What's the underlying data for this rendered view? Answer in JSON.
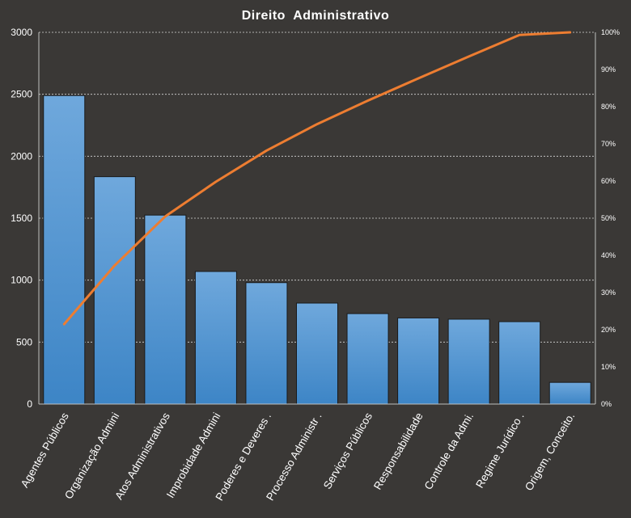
{
  "chart_data": {
    "type": "bar",
    "title": "Direito  Administrativo",
    "categories": [
      "Agentes Públicos",
      "Organização Admini",
      "Atos Administrativos",
      "Improbidade Admini",
      "Poderes e Deveres .",
      "Processo Administr .",
      "Serviços Públicos",
      "Responsabilidade",
      "Controle da Admi.",
      "Regime Jurídico .",
      "Origem, Conceito."
    ],
    "series": [
      {
        "type": "bar",
        "values": [
          2490,
          1835,
          1525,
          1070,
          980,
          815,
          730,
          695,
          685,
          665,
          175
        ]
      },
      {
        "type": "line",
        "axis": "right",
        "values": [
          21.5,
          37.3,
          50.5,
          59.8,
          68.2,
          75.3,
          81.6,
          87.6,
          93.5,
          99.3,
          100
        ]
      }
    ],
    "y_left": {
      "min": 0,
      "max": 3000,
      "ticks": [
        "0",
        "500",
        "1000",
        "1500",
        "2000",
        "2500",
        "3000"
      ]
    },
    "y_right": {
      "min": 0,
      "max": 100,
      "ticks": [
        "0%",
        "10%",
        "20%",
        "30%",
        "40%",
        "50%",
        "60%",
        "70%",
        "80%",
        "90%",
        "100%"
      ]
    },
    "grid": true,
    "legend": "none",
    "colors": {
      "bar_top": "#6fa8dc",
      "bar_bottom": "#3d85c6",
      "line": "#ed7d31",
      "background": "#3a3836"
    }
  }
}
